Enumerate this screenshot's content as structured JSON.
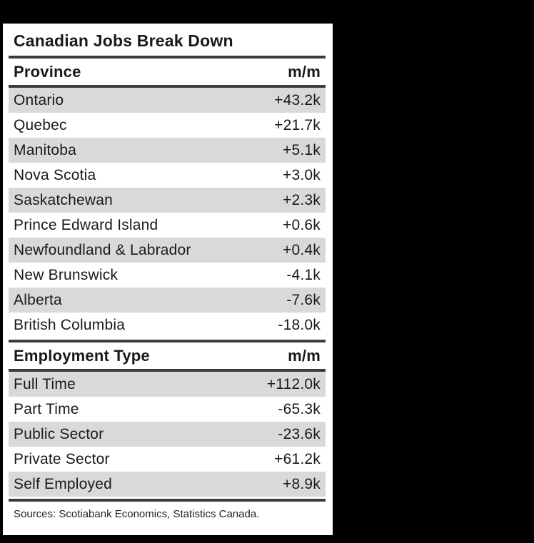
{
  "page": {
    "background_color": "#000000",
    "panel_color": "#ffffff",
    "stripe_color": "#d9d9d9",
    "rule_color": "#3b3b3b",
    "text_color": "#1a1a1a"
  },
  "table": {
    "title": "Canadian Jobs Break Down",
    "sections": [
      {
        "header": {
          "label": "Province",
          "value": "m/m"
        },
        "rows": [
          {
            "label": "Ontario",
            "value": "+43.2k"
          },
          {
            "label": "Quebec",
            "value": "+21.7k"
          },
          {
            "label": "Manitoba",
            "value": "+5.1k"
          },
          {
            "label": "Nova Scotia",
            "value": "+3.0k"
          },
          {
            "label": "Saskatchewan",
            "value": "+2.3k"
          },
          {
            "label": "Prince Edward Island",
            "value": "+0.6k"
          },
          {
            "label": "Newfoundland & Labrador",
            "value": "+0.4k"
          },
          {
            "label": "New Brunswick",
            "value": "-4.1k"
          },
          {
            "label": "Alberta",
            "value": "-7.6k"
          },
          {
            "label": "British Columbia",
            "value": "-18.0k"
          }
        ]
      },
      {
        "header": {
          "label": "Employment Type",
          "value": "m/m"
        },
        "rows": [
          {
            "label": "Full Time",
            "value": "+112.0k"
          },
          {
            "label": "Part Time",
            "value": "-65.3k"
          },
          {
            "label": "Public Sector",
            "value": "-23.6k"
          },
          {
            "label": "Private Sector",
            "value": "+61.2k"
          },
          {
            "label": "Self Employed",
            "value": "+8.9k"
          }
        ]
      }
    ],
    "source": "Sources: Scotiabank Economics, Statistics Canada."
  },
  "chart_data": {
    "type": "table",
    "title": "Canadian Jobs Break Down",
    "sections": [
      {
        "header": [
          "Province",
          "m/m"
        ],
        "rows": [
          [
            "Ontario",
            "+43.2k"
          ],
          [
            "Quebec",
            "+21.7k"
          ],
          [
            "Manitoba",
            "+5.1k"
          ],
          [
            "Nova Scotia",
            "+3.0k"
          ],
          [
            "Saskatchewan",
            "+2.3k"
          ],
          [
            "Prince Edward Island",
            "+0.6k"
          ],
          [
            "Newfoundland & Labrador",
            "+0.4k"
          ],
          [
            "New Brunswick",
            "-4.1k"
          ],
          [
            "Alberta",
            "-7.6k"
          ],
          [
            "British Columbia",
            "-18.0k"
          ]
        ],
        "values_thousands": [
          43.2,
          21.7,
          5.1,
          3.0,
          2.3,
          0.6,
          0.4,
          -4.1,
          -7.6,
          -18.0
        ]
      },
      {
        "header": [
          "Employment Type",
          "m/m"
        ],
        "rows": [
          [
            "Full Time",
            "+112.0k"
          ],
          [
            "Part Time",
            "-65.3k"
          ],
          [
            "Public Sector",
            "-23.6k"
          ],
          [
            "Private Sector",
            "+61.2k"
          ],
          [
            "Self Employed",
            "+8.9k"
          ]
        ],
        "values_thousands": [
          112.0,
          -65.3,
          -23.6,
          61.2,
          8.9
        ]
      }
    ],
    "source": "Sources: Scotiabank Economics, Statistics Canada.",
    "layout": {
      "zebra_striping": true,
      "stripe_starts_on_first_row": true
    }
  }
}
